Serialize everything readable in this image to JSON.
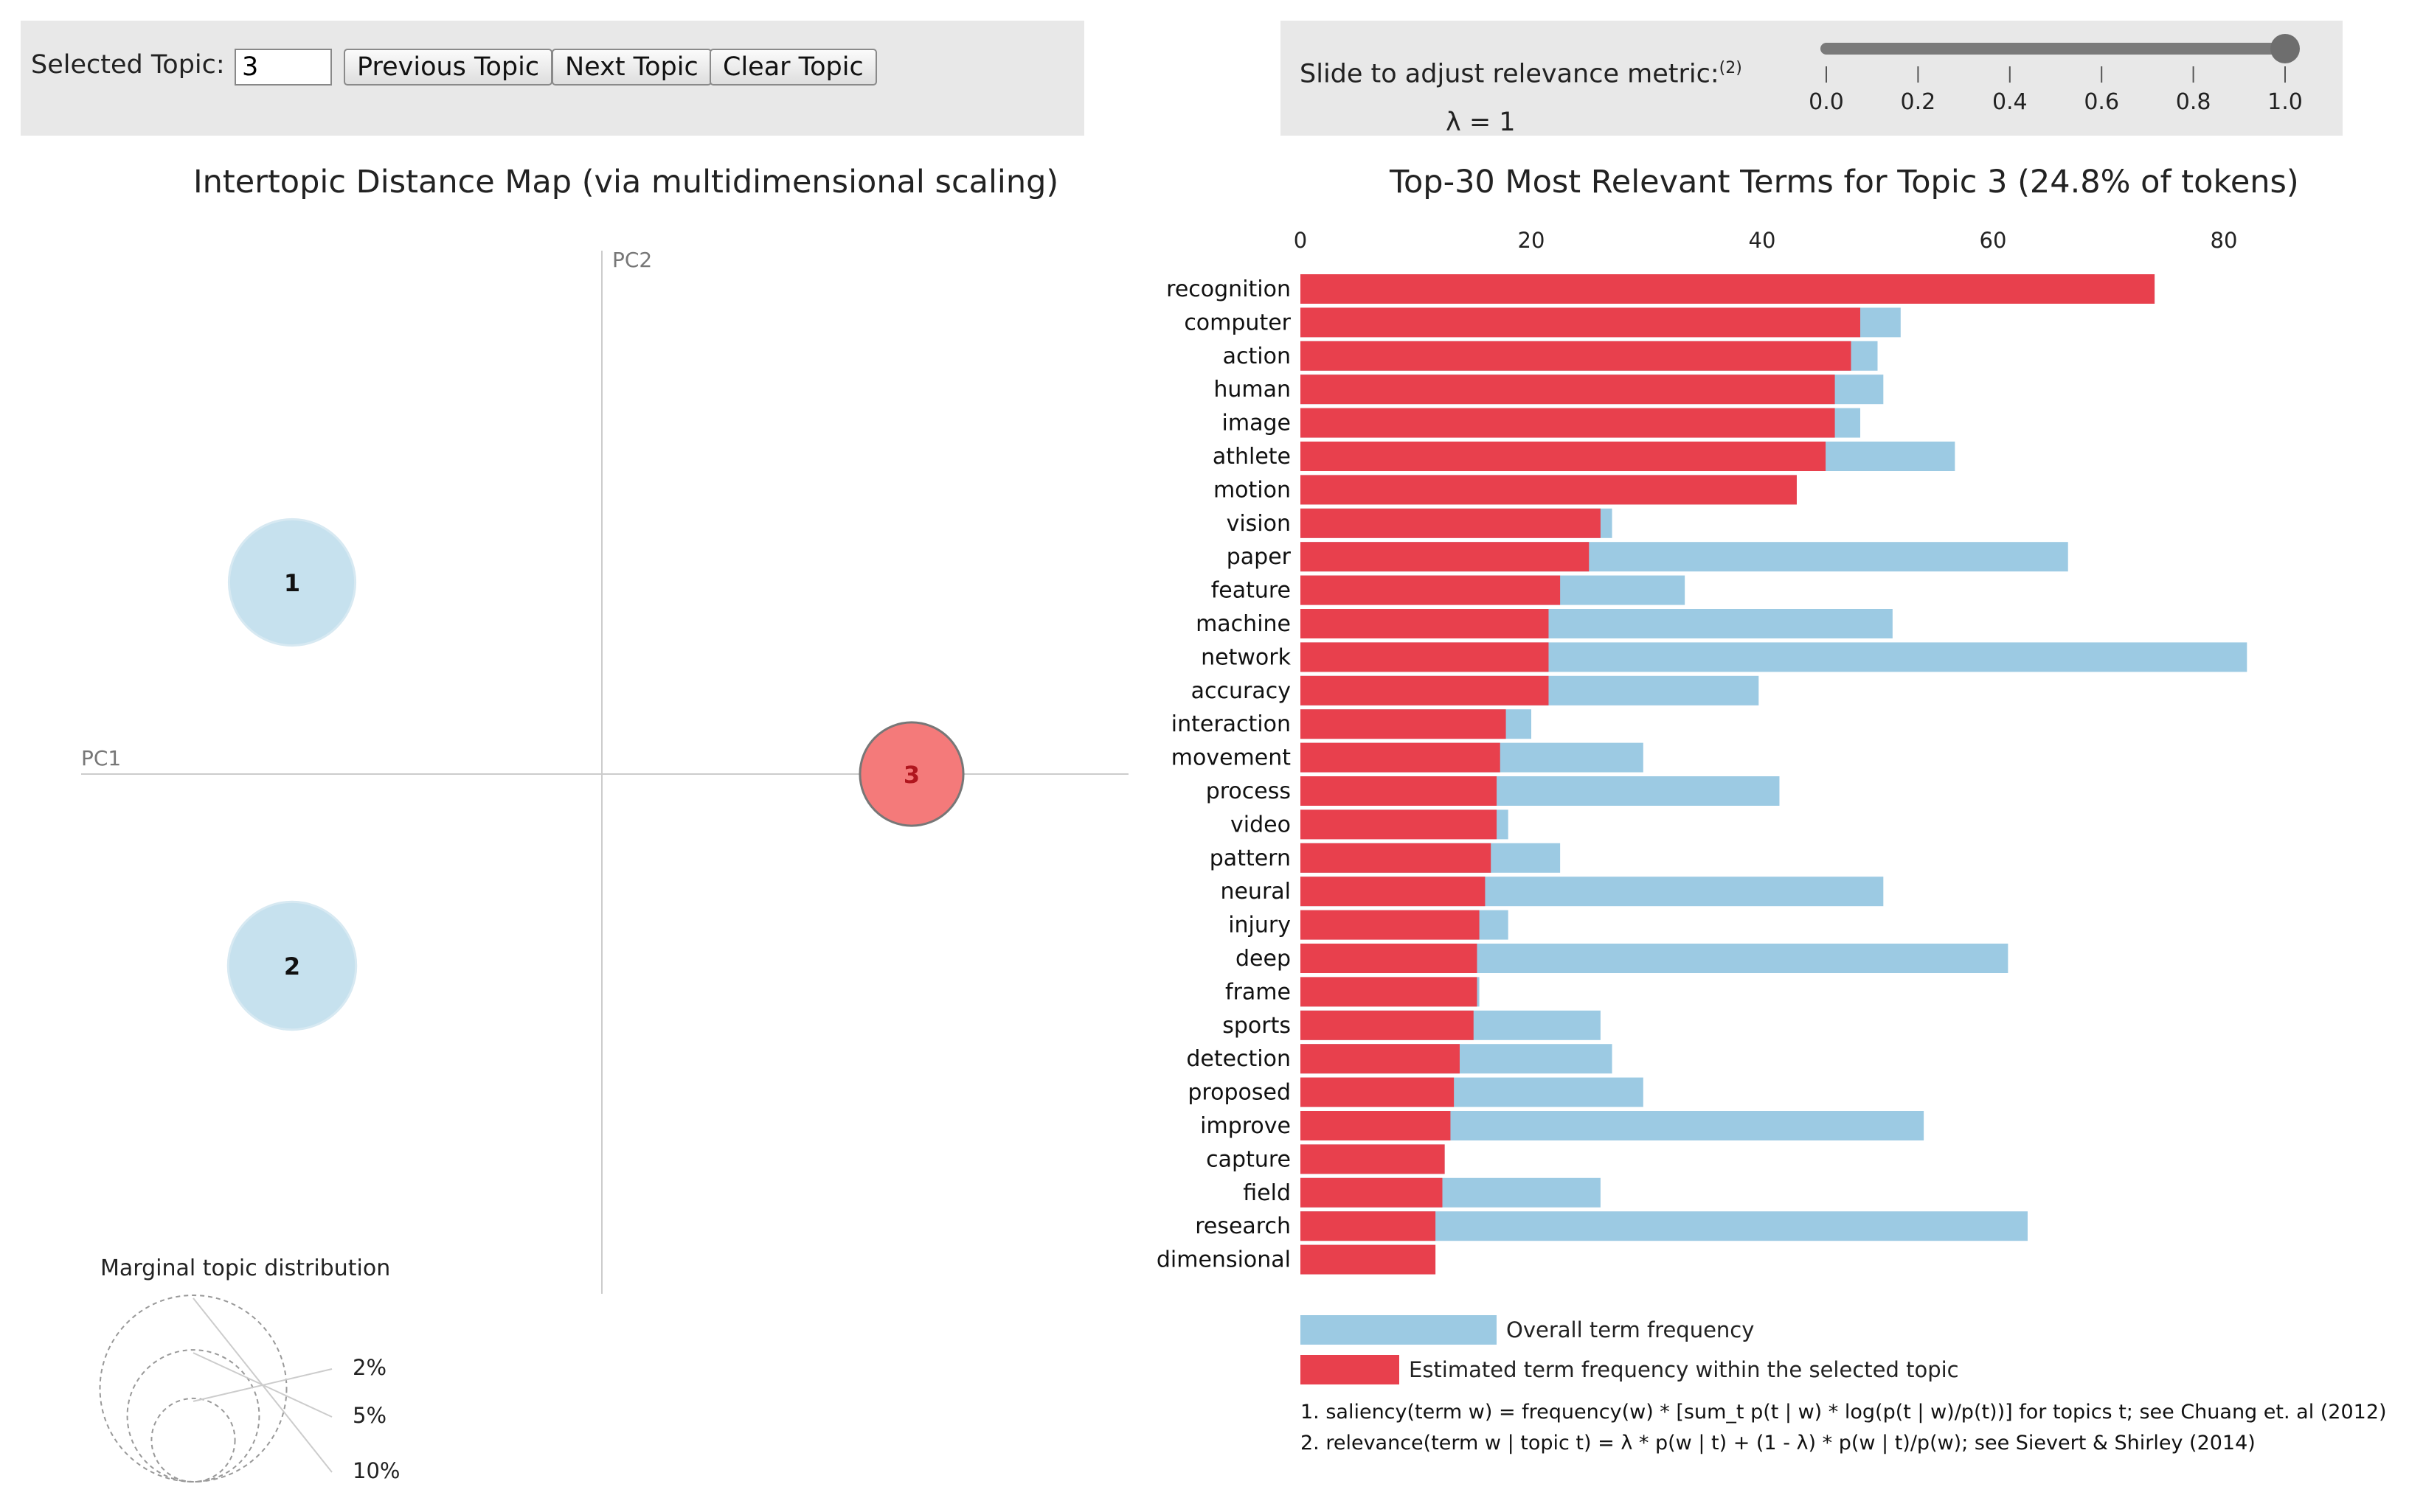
{
  "controls": {
    "selected_topic_label": "Selected Topic:",
    "selected_topic_value": "3",
    "previous_label": "Previous Topic",
    "next_label": "Next Topic",
    "clear_label": "Clear Topic"
  },
  "slider": {
    "label": "Slide to adjust relevance metric:",
    "footnote_ref": "(2)",
    "lambda_text": "λ = 1",
    "value": 1.0,
    "min": 0.0,
    "max": 1.0,
    "ticks": [
      "0.0",
      "0.2",
      "0.4",
      "0.6",
      "0.8",
      "1.0"
    ]
  },
  "chart_data": [
    {
      "type": "scatter",
      "title": "Intertopic Distance Map (via multidimensional scaling)",
      "xlabel": "PC1",
      "ylabel": "PC2",
      "topics": [
        {
          "id": "1",
          "pc1": -0.3,
          "pc2": 0.25,
          "share_pct": 37,
          "selected": false
        },
        {
          "id": "2",
          "pc1": -0.3,
          "pc2": -0.25,
          "share_pct": 38,
          "selected": false
        },
        {
          "id": "3",
          "pc1": 0.3,
          "pc2": 0.0,
          "share_pct": 24.8,
          "selected": true
        }
      ],
      "legend_title": "Marginal topic distribution",
      "legend_sizes": [
        {
          "label": "2%",
          "pct": 2
        },
        {
          "label": "5%",
          "pct": 5
        },
        {
          "label": "10%",
          "pct": 10
        }
      ]
    },
    {
      "type": "bar",
      "orientation": "horizontal",
      "title": "Top-30 Most Relevant Terms for Topic 3 (24.8% of tokens)",
      "xlim": [
        0,
        80
      ],
      "xticks": [
        "0",
        "20",
        "40",
        "60",
        "80"
      ],
      "categories": [
        "recognition",
        "computer",
        "action",
        "human",
        "image",
        "athlete",
        "motion",
        "vision",
        "paper",
        "feature",
        "machine",
        "network",
        "accuracy",
        "interaction",
        "movement",
        "process",
        "video",
        "pattern",
        "neural",
        "injury",
        "deep",
        "frame",
        "sports",
        "detection",
        "proposed",
        "improve",
        "capture",
        "field",
        "research",
        "dimensional"
      ],
      "series": [
        {
          "name": "Overall term frequency",
          "color": "#9ccae3",
          "values": [
            74,
            52,
            50,
            50.5,
            48.5,
            56.7,
            43,
            27,
            66.5,
            33.3,
            51.3,
            82,
            39.7,
            20,
            29.7,
            41.5,
            18,
            22.5,
            50.5,
            18,
            61.3,
            15.5,
            26,
            27,
            29.7,
            54,
            12.5,
            26,
            63,
            11.7
          ]
        },
        {
          "name": "Estimated term frequency within the selected topic",
          "color": "#e8404d",
          "values": [
            74,
            48.5,
            47.7,
            46.3,
            46.3,
            45.5,
            43,
            26,
            25,
            22.5,
            21.5,
            21.5,
            21.5,
            17.8,
            17.3,
            17,
            17,
            16.5,
            16,
            15.5,
            15.3,
            15.3,
            15,
            13.8,
            13.3,
            13,
            12.5,
            12.3,
            11.7,
            11.7
          ]
        }
      ],
      "legend": [
        "Overall term frequency",
        "Estimated term frequency within the selected topic"
      ]
    }
  ],
  "footnotes": [
    "1. saliency(term w) = frequency(w) * [sum_t p(t | w) * log(p(t | w)/p(t))] for topics t; see Chuang et. al (2012)",
    "2. relevance(term w | topic t) = λ * p(w | t) + (1 - λ) * p(w | t)/p(w); see Sievert & Shirley (2014)"
  ],
  "colors": {
    "topic_default": "#c6e1ee",
    "topic_selected": "#f47a7a",
    "overall_bar": "#9ccae3",
    "topic_bar": "#e8404d"
  }
}
